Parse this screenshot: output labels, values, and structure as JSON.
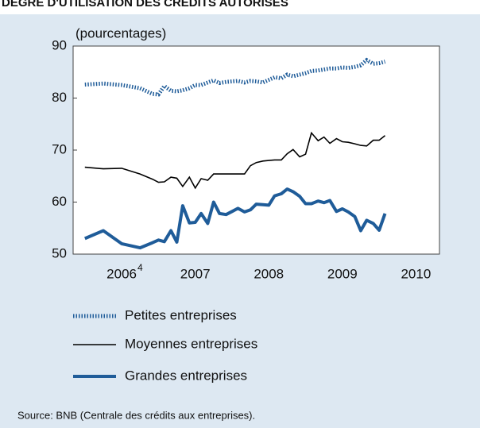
{
  "chart_data": {
    "type": "line",
    "title": "DEGRÉ D'UTILISATION DES CRÉDITS AUTORISÉS",
    "y_label": "(pourcentages)",
    "source": "Source: BNB (Centrale des crédits aux entreprises).",
    "footnote": "4",
    "x": [
      2006.0,
      2006.25,
      2006.5,
      2006.75,
      2006.92,
      2007.0,
      2007.08,
      2007.17,
      2007.25,
      2007.33,
      2007.42,
      2007.5,
      2007.58,
      2007.67,
      2007.75,
      2007.83,
      2007.92,
      2008.0,
      2008.08,
      2008.17,
      2008.25,
      2008.33,
      2008.42,
      2008.5,
      2008.58,
      2008.67,
      2008.75,
      2008.83,
      2008.92,
      2009.0,
      2009.08,
      2009.17,
      2009.25,
      2009.33,
      2009.42,
      2009.5,
      2009.58,
      2009.67,
      2009.75,
      2009.83,
      2009.92,
      2010.0,
      2010.08
    ],
    "series": [
      {
        "name": "Petites entreprises",
        "color": "#1f5c99",
        "style": "dotted",
        "values": [
          82.6,
          82.8,
          82.5,
          81.9,
          80.8,
          80.7,
          82.3,
          81.4,
          81.3,
          81.5,
          81.9,
          82.5,
          82.5,
          83.0,
          83.4,
          82.9,
          83.1,
          83.2,
          83.3,
          83.0,
          83.3,
          83.2,
          83.0,
          83.5,
          84.0,
          83.8,
          84.5,
          84.2,
          84.5,
          84.8,
          85.2,
          85.3,
          85.5,
          85.7,
          85.7,
          85.9,
          85.8,
          86.0,
          86.3,
          87.3,
          86.6,
          86.7,
          87.0
        ]
      },
      {
        "name": "Moyennes entreprises",
        "color": "#000000",
        "style": "thin",
        "values": [
          66.7,
          66.4,
          66.5,
          65.4,
          64.4,
          63.8,
          63.9,
          64.8,
          64.6,
          63.0,
          64.8,
          62.7,
          64.5,
          64.2,
          65.4,
          65.4,
          65.4,
          65.4,
          65.4,
          65.4,
          67.0,
          67.6,
          67.9,
          68.0,
          68.1,
          68.1,
          69.3,
          70.1,
          68.7,
          69.2,
          73.3,
          71.8,
          72.5,
          71.3,
          72.2,
          71.6,
          71.5,
          71.2,
          70.9,
          70.8,
          71.9,
          71.9,
          72.8
        ]
      },
      {
        "name": "Grandes entreprises",
        "color": "#1f5c99",
        "style": "thick",
        "values": [
          53.0,
          54.5,
          52.0,
          51.2,
          52.2,
          52.7,
          52.4,
          54.5,
          52.3,
          59.3,
          56.0,
          56.1,
          57.8,
          55.9,
          60.0,
          57.8,
          57.6,
          58.2,
          58.8,
          58.1,
          58.5,
          59.6,
          59.5,
          59.4,
          61.2,
          61.6,
          62.5,
          62.0,
          61.1,
          59.7,
          59.7,
          60.2,
          59.9,
          60.3,
          58.2,
          58.7,
          58.1,
          57.2,
          54.5,
          56.5,
          55.9,
          54.6,
          57.8
        ]
      }
    ],
    "xlim": [
      2005.84,
      2010.82
    ],
    "xticks": [
      {
        "value": 2006.5,
        "label": "2006"
      },
      {
        "value": 2007.5,
        "label": "2007"
      },
      {
        "value": 2008.5,
        "label": "2008"
      },
      {
        "value": 2009.5,
        "label": "2009"
      },
      {
        "value": 2010.5,
        "label": "2010"
      }
    ],
    "ylim": [
      50,
      90
    ],
    "yticks": [
      50,
      60,
      70,
      80,
      90
    ]
  }
}
